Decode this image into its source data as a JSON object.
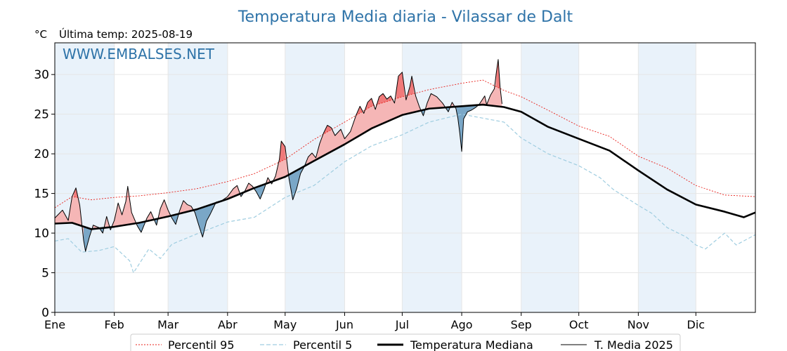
{
  "header": {
    "title": "Temperatura Media diaria - Vilassar de Dalt",
    "unit": "°C",
    "last_temp_label": "Última temp: 2025-08-19"
  },
  "watermark": "WWW.EMBALSES.NET",
  "colors": {
    "title": "#2e73a8",
    "p95": "#e8201a",
    "p5": "#9fcde0",
    "median": "#000000",
    "media2025": "#000000",
    "above_fill": "#f5b6b6",
    "above_fill_strong": "#f07a7a",
    "below_fill": "#7aa7c7",
    "month_band": "#e9f2fa"
  },
  "chart_data": {
    "type": "line",
    "title": "Temperatura Media diaria - Vilassar de Dalt",
    "xlabel": "",
    "ylabel": "°C",
    "xlim": [
      1,
      366
    ],
    "ylim": [
      0,
      34
    ],
    "yticks": [
      0,
      5,
      10,
      15,
      20,
      25,
      30
    ],
    "month_labels": [
      "Ene",
      "Feb",
      "Mar",
      "Abr",
      "May",
      "Jun",
      "Jul",
      "Ago",
      "Sep",
      "Oct",
      "Nov",
      "Dic"
    ],
    "month_start_days": [
      1,
      32,
      60,
      91,
      121,
      152,
      182,
      213,
      244,
      274,
      305,
      335
    ],
    "grid": true,
    "legend_position": "bottom",
    "series": [
      {
        "name": "Percentil 95",
        "style": "dotted-red",
        "points": [
          [
            1,
            13.2
          ],
          [
            10,
            14.6
          ],
          [
            20,
            14.2
          ],
          [
            32,
            14.5
          ],
          [
            45,
            14.7
          ],
          [
            60,
            15.1
          ],
          [
            75,
            15.6
          ],
          [
            91,
            16.5
          ],
          [
            105,
            17.5
          ],
          [
            121,
            19.3
          ],
          [
            136,
            21.8
          ],
          [
            152,
            24.0
          ],
          [
            166,
            26.0
          ],
          [
            182,
            27.2
          ],
          [
            196,
            28.1
          ],
          [
            213,
            28.9
          ],
          [
            224,
            29.3
          ],
          [
            235,
            28.0
          ],
          [
            244,
            27.2
          ],
          [
            258,
            25.5
          ],
          [
            274,
            23.5
          ],
          [
            290,
            22.2
          ],
          [
            305,
            19.7
          ],
          [
            320,
            18.2
          ],
          [
            335,
            16.0
          ],
          [
            350,
            14.8
          ],
          [
            366,
            14.6
          ]
        ]
      },
      {
        "name": "Percentil 5",
        "style": "dashed-lightblue",
        "points": [
          [
            1,
            9.0
          ],
          [
            8,
            9.3
          ],
          [
            15,
            7.6
          ],
          [
            24,
            7.8
          ],
          [
            32,
            8.3
          ],
          [
            40,
            6.5
          ],
          [
            42,
            5.0
          ],
          [
            50,
            8.0
          ],
          [
            56,
            6.8
          ],
          [
            62,
            8.6
          ],
          [
            75,
            9.9
          ],
          [
            91,
            11.4
          ],
          [
            105,
            12.0
          ],
          [
            121,
            14.5
          ],
          [
            136,
            16.0
          ],
          [
            152,
            19.0
          ],
          [
            166,
            21.0
          ],
          [
            182,
            22.4
          ],
          [
            196,
            24.0
          ],
          [
            213,
            25.0
          ],
          [
            224,
            24.5
          ],
          [
            235,
            24.0
          ],
          [
            244,
            22.0
          ],
          [
            258,
            20.0
          ],
          [
            274,
            18.5
          ],
          [
            285,
            17.0
          ],
          [
            292,
            15.5
          ],
          [
            305,
            13.5
          ],
          [
            312,
            12.5
          ],
          [
            320,
            10.7
          ],
          [
            330,
            9.5
          ],
          [
            335,
            8.5
          ],
          [
            340,
            8.0
          ],
          [
            350,
            10.0
          ],
          [
            356,
            8.5
          ],
          [
            366,
            9.8
          ]
        ]
      },
      {
        "name": "Temperatura Mediana",
        "style": "thick-black",
        "points": [
          [
            1,
            11.2
          ],
          [
            10,
            11.3
          ],
          [
            20,
            10.5
          ],
          [
            32,
            10.8
          ],
          [
            45,
            11.3
          ],
          [
            60,
            12.1
          ],
          [
            75,
            13.0
          ],
          [
            91,
            14.3
          ],
          [
            105,
            15.7
          ],
          [
            121,
            17.1
          ],
          [
            136,
            19.1
          ],
          [
            152,
            21.2
          ],
          [
            166,
            23.2
          ],
          [
            182,
            24.9
          ],
          [
            196,
            25.7
          ],
          [
            213,
            26.0
          ],
          [
            224,
            26.2
          ],
          [
            235,
            25.9
          ],
          [
            244,
            25.3
          ],
          [
            258,
            23.4
          ],
          [
            274,
            21.9
          ],
          [
            290,
            20.4
          ],
          [
            305,
            17.9
          ],
          [
            320,
            15.5
          ],
          [
            335,
            13.6
          ],
          [
            350,
            12.7
          ],
          [
            360,
            12.0
          ],
          [
            366,
            12.6
          ]
        ]
      },
      {
        "name": "T. Media 2025",
        "style": "thin-black",
        "points": [
          [
            1,
            11.9
          ],
          [
            5,
            12.9
          ],
          [
            8,
            11.6
          ],
          [
            10,
            14.6
          ],
          [
            12,
            15.7
          ],
          [
            14,
            13.5
          ],
          [
            16,
            9.1
          ],
          [
            17,
            7.7
          ],
          [
            19,
            9.5
          ],
          [
            21,
            11.0
          ],
          [
            24,
            10.7
          ],
          [
            26,
            10.0
          ],
          [
            28,
            12.1
          ],
          [
            30,
            10.4
          ],
          [
            32,
            11.6
          ],
          [
            34,
            13.8
          ],
          [
            36,
            12.3
          ],
          [
            38,
            14.0
          ],
          [
            39,
            15.9
          ],
          [
            41,
            12.6
          ],
          [
            44,
            10.9
          ],
          [
            46,
            10.1
          ],
          [
            49,
            11.9
          ],
          [
            51,
            12.7
          ],
          [
            54,
            11.0
          ],
          [
            56,
            13.1
          ],
          [
            58,
            14.2
          ],
          [
            60,
            12.9
          ],
          [
            62,
            11.9
          ],
          [
            64,
            11.1
          ],
          [
            66,
            12.8
          ],
          [
            68,
            14.1
          ],
          [
            70,
            13.6
          ],
          [
            72,
            13.4
          ],
          [
            74,
            12.6
          ],
          [
            76,
            11.0
          ],
          [
            78,
            9.5
          ],
          [
            80,
            11.5
          ],
          [
            82,
            12.4
          ],
          [
            85,
            13.9
          ],
          [
            88,
            14.1
          ],
          [
            91,
            14.6
          ],
          [
            94,
            15.6
          ],
          [
            96,
            16.0
          ],
          [
            98,
            14.6
          ],
          [
            100,
            15.3
          ],
          [
            102,
            16.3
          ],
          [
            104,
            15.9
          ],
          [
            106,
            15.2
          ],
          [
            108,
            14.3
          ],
          [
            110,
            15.5
          ],
          [
            112,
            17.0
          ],
          [
            114,
            16.2
          ],
          [
            116,
            17.2
          ],
          [
            118,
            19.3
          ],
          [
            119,
            21.6
          ],
          [
            121,
            20.9
          ],
          [
            123,
            16.9
          ],
          [
            125,
            14.2
          ],
          [
            127,
            15.6
          ],
          [
            129,
            17.5
          ],
          [
            131,
            18.4
          ],
          [
            133,
            19.6
          ],
          [
            135,
            20.1
          ],
          [
            137,
            19.5
          ],
          [
            139,
            21.3
          ],
          [
            141,
            22.6
          ],
          [
            143,
            23.6
          ],
          [
            145,
            23.3
          ],
          [
            147,
            22.3
          ],
          [
            150,
            23.1
          ],
          [
            152,
            21.9
          ],
          [
            155,
            22.8
          ],
          [
            158,
            24.9
          ],
          [
            160,
            26.0
          ],
          [
            162,
            25.1
          ],
          [
            164,
            26.5
          ],
          [
            166,
            27.0
          ],
          [
            168,
            25.6
          ],
          [
            170,
            27.2
          ],
          [
            172,
            27.6
          ],
          [
            174,
            26.9
          ],
          [
            176,
            27.3
          ],
          [
            178,
            26.4
          ],
          [
            180,
            29.8
          ],
          [
            182,
            30.3
          ],
          [
            184,
            26.8
          ],
          [
            186,
            28.5
          ],
          [
            187,
            29.8
          ],
          [
            189,
            27.3
          ],
          [
            191,
            25.9
          ],
          [
            193,
            24.8
          ],
          [
            195,
            26.4
          ],
          [
            197,
            27.6
          ],
          [
            200,
            27.2
          ],
          [
            203,
            26.4
          ],
          [
            206,
            25.3
          ],
          [
            208,
            26.5
          ],
          [
            210,
            25.7
          ],
          [
            211,
            24.5
          ],
          [
            212,
            22.6
          ],
          [
            213,
            20.3
          ],
          [
            214,
            24.4
          ],
          [
            216,
            25.3
          ],
          [
            218,
            25.5
          ],
          [
            220,
            25.8
          ],
          [
            222,
            26.2
          ],
          [
            225,
            27.3
          ],
          [
            226,
            26.2
          ],
          [
            228,
            27.4
          ],
          [
            230,
            28.2
          ],
          [
            231,
            30.2
          ],
          [
            232,
            31.9
          ],
          [
            233,
            28.4
          ],
          [
            234,
            26.3
          ]
        ]
      }
    ]
  },
  "legend": {
    "p95": "Percentil 95",
    "p5": "Percentil 5",
    "median": "Temperatura Mediana",
    "media2025": "T. Media 2025"
  }
}
